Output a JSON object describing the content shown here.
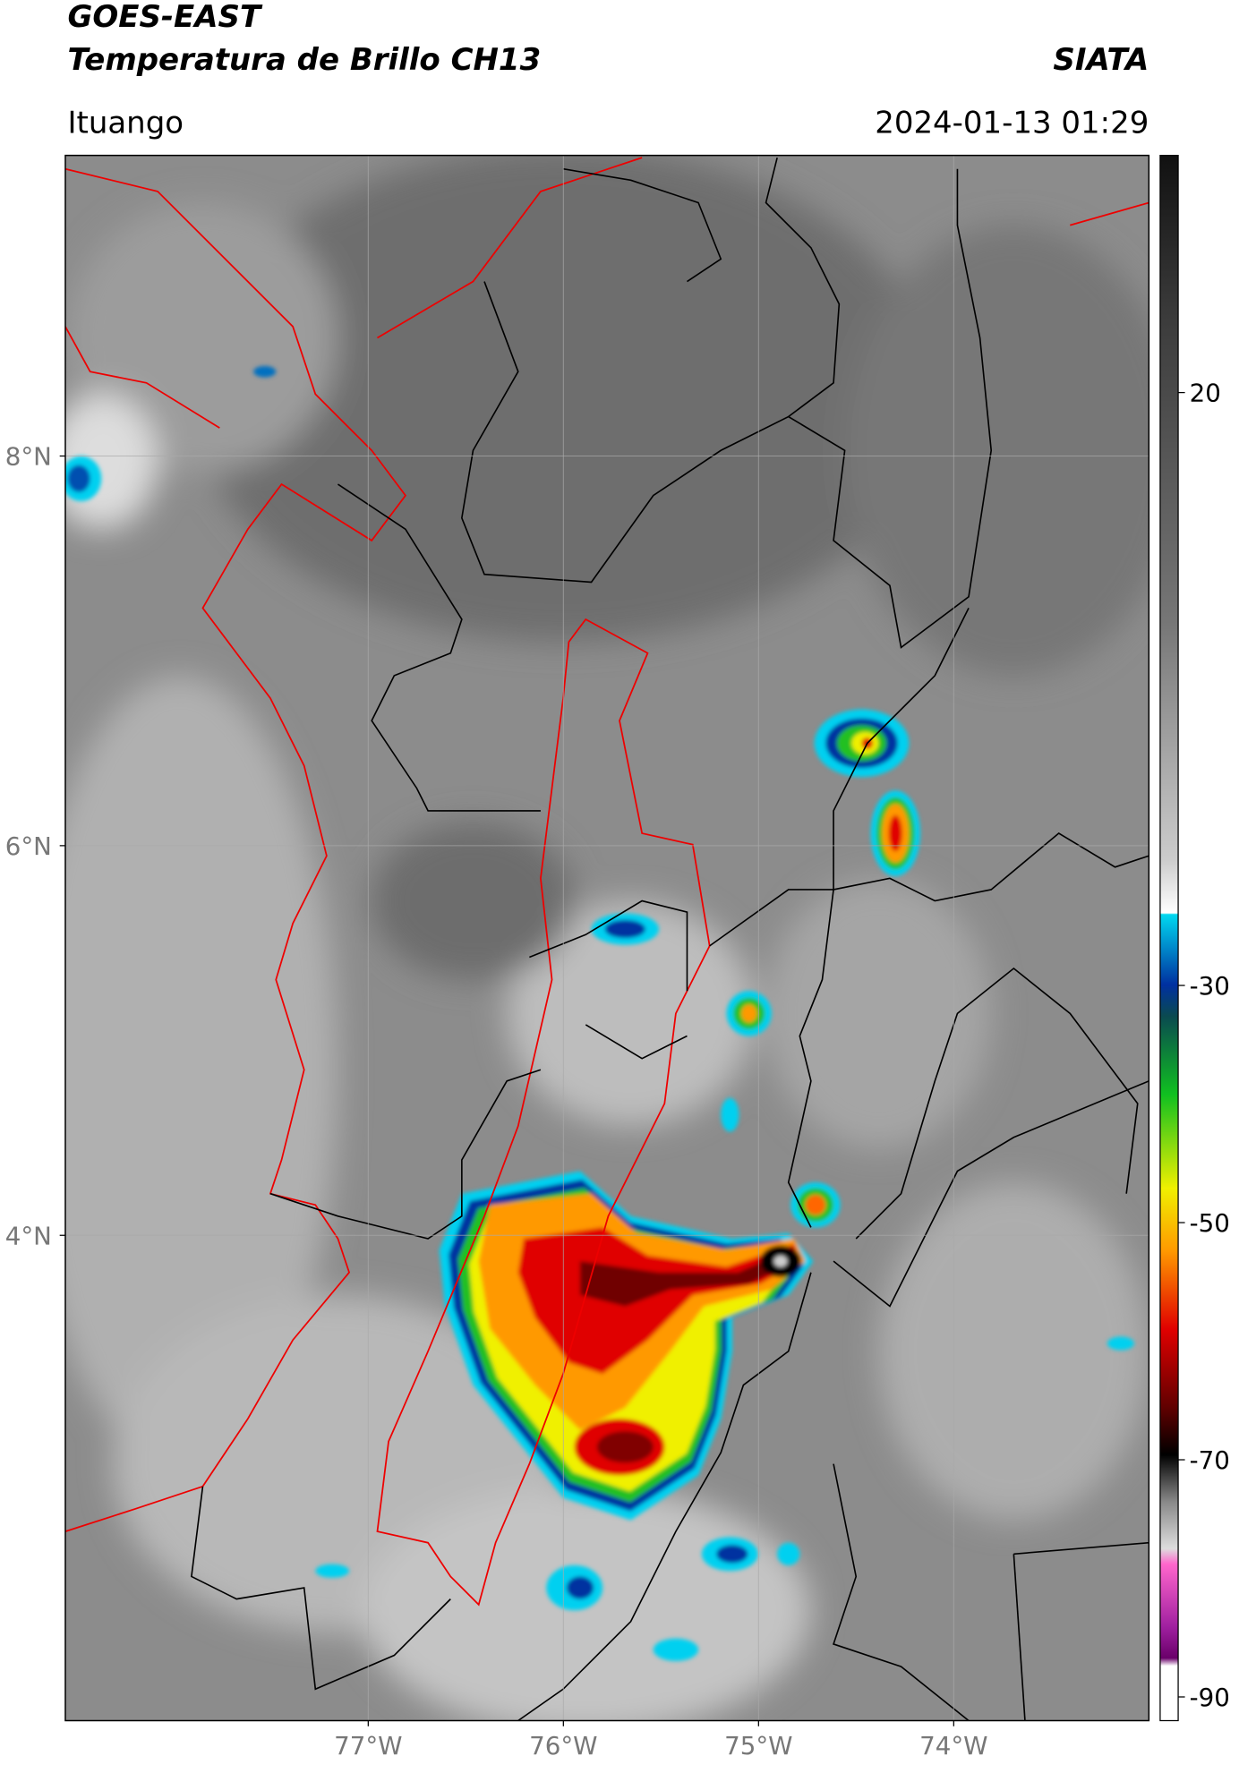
{
  "header": {
    "satellite": "GOES-EAST",
    "product": "Temperatura de Brillo CH13",
    "agency": "SIATA",
    "location": "Ituango",
    "datetime": "2024-01-13 01:29"
  },
  "map": {
    "lon_range": [
      -78.552,
      -73.0
    ],
    "lat_range": [
      1.509,
      9.543
    ],
    "grid": true,
    "lon_ticks": [
      {
        "value": -77,
        "label": "77°W"
      },
      {
        "value": -76,
        "label": "76°W"
      },
      {
        "value": -75,
        "label": "75°W"
      },
      {
        "value": -74,
        "label": "74°W"
      }
    ],
    "lat_ticks": [
      {
        "value": 8,
        "label": "8°N"
      },
      {
        "value": 6,
        "label": "6°N"
      },
      {
        "value": 4,
        "label": "4°N"
      }
    ]
  },
  "colorbar": {
    "range": [
      -92,
      40
    ],
    "ticks": [
      20,
      -30,
      -50,
      -70,
      -90
    ]
  }
}
